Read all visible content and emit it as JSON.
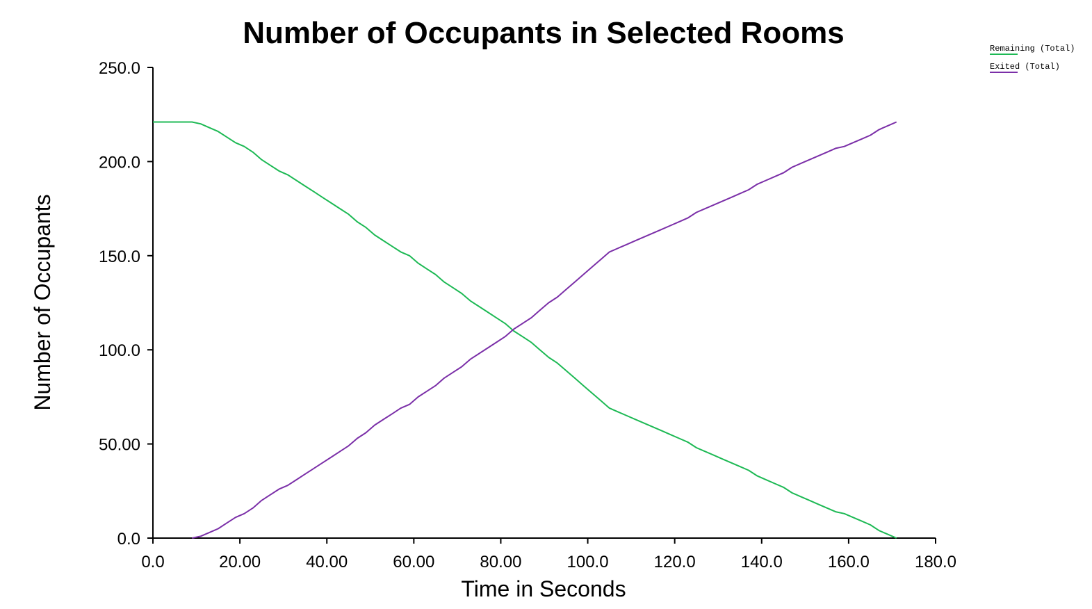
{
  "chart_data": {
    "type": "line",
    "title": "Number of Occupants in Selected Rooms",
    "xlabel": "Time in Seconds",
    "ylabel": "Number of Occupants",
    "xlim": [
      0,
      180
    ],
    "ylim": [
      0,
      250
    ],
    "x_ticks": [
      {
        "value": 0,
        "label": "0.0"
      },
      {
        "value": 20,
        "label": "20.00"
      },
      {
        "value": 40,
        "label": "40.00"
      },
      {
        "value": 60,
        "label": "60.00"
      },
      {
        "value": 80,
        "label": "80.00"
      },
      {
        "value": 100,
        "label": "100.0"
      },
      {
        "value": 120,
        "label": "120.0"
      },
      {
        "value": 140,
        "label": "140.0"
      },
      {
        "value": 160,
        "label": "160.0"
      },
      {
        "value": 180,
        "label": "180.0"
      }
    ],
    "y_ticks": [
      {
        "value": 0,
        "label": "0.0"
      },
      {
        "value": 50,
        "label": "50.00"
      },
      {
        "value": 100,
        "label": "100.0"
      },
      {
        "value": 150,
        "label": "150.0"
      },
      {
        "value": 200,
        "label": "200.0"
      },
      {
        "value": 250,
        "label": "250.0"
      }
    ],
    "legend_position": "top-right",
    "grid": false,
    "series": [
      {
        "name": "Remaining (Total)",
        "color": "#1db954",
        "x": [
          0,
          9,
          11,
          13,
          15,
          17,
          19,
          21,
          23,
          25,
          27,
          29,
          31,
          33,
          35,
          37,
          39,
          41,
          43,
          45,
          47,
          49,
          51,
          53,
          55,
          57,
          59,
          61,
          63,
          65,
          67,
          69,
          71,
          73,
          75,
          77,
          79,
          81,
          83,
          85,
          87,
          89,
          91,
          93,
          95,
          97,
          99,
          101,
          103,
          105,
          107,
          109,
          111,
          113,
          115,
          117,
          119,
          121,
          123,
          125,
          127,
          129,
          131,
          133,
          135,
          137,
          139,
          141,
          143,
          145,
          147,
          149,
          151,
          153,
          155,
          157,
          159,
          161,
          163,
          165,
          167,
          169,
          171
        ],
        "values": [
          221,
          221,
          220,
          218,
          216,
          213,
          210,
          208,
          205,
          201,
          198,
          195,
          193,
          190,
          187,
          184,
          181,
          178,
          175,
          172,
          168,
          165,
          161,
          158,
          155,
          152,
          150,
          146,
          143,
          140,
          136,
          133,
          130,
          126,
          123,
          120,
          117,
          114,
          110,
          107,
          104,
          100,
          96,
          93,
          89,
          85,
          81,
          77,
          73,
          69,
          67,
          65,
          63,
          61,
          59,
          57,
          55,
          53,
          51,
          48,
          46,
          44,
          42,
          40,
          38,
          36,
          33,
          31,
          29,
          27,
          24,
          22,
          20,
          18,
          16,
          14,
          13,
          11,
          9,
          7,
          4,
          2,
          0
        ]
      },
      {
        "name": "Exited (Total)",
        "color": "#7b2fa8",
        "x": [
          9,
          11,
          13,
          15,
          17,
          19,
          21,
          23,
          25,
          27,
          29,
          31,
          33,
          35,
          37,
          39,
          41,
          43,
          45,
          47,
          49,
          51,
          53,
          55,
          57,
          59,
          61,
          63,
          65,
          67,
          69,
          71,
          73,
          75,
          77,
          79,
          81,
          83,
          85,
          87,
          89,
          91,
          93,
          95,
          97,
          99,
          101,
          103,
          105,
          107,
          109,
          111,
          113,
          115,
          117,
          119,
          121,
          123,
          125,
          127,
          129,
          131,
          133,
          135,
          137,
          139,
          141,
          143,
          145,
          147,
          149,
          151,
          153,
          155,
          157,
          159,
          161,
          163,
          165,
          167,
          169,
          171
        ],
        "values": [
          0,
          1,
          3,
          5,
          8,
          11,
          13,
          16,
          20,
          23,
          26,
          28,
          31,
          34,
          37,
          40,
          43,
          46,
          49,
          53,
          56,
          60,
          63,
          66,
          69,
          71,
          75,
          78,
          81,
          85,
          88,
          91,
          95,
          98,
          101,
          104,
          107,
          111,
          114,
          117,
          121,
          125,
          128,
          132,
          136,
          140,
          144,
          148,
          152,
          154,
          156,
          158,
          160,
          162,
          164,
          166,
          168,
          170,
          173,
          175,
          177,
          179,
          181,
          183,
          185,
          188,
          190,
          192,
          194,
          197,
          199,
          201,
          203,
          205,
          207,
          208,
          210,
          212,
          214,
          217,
          219,
          221
        ]
      }
    ]
  }
}
